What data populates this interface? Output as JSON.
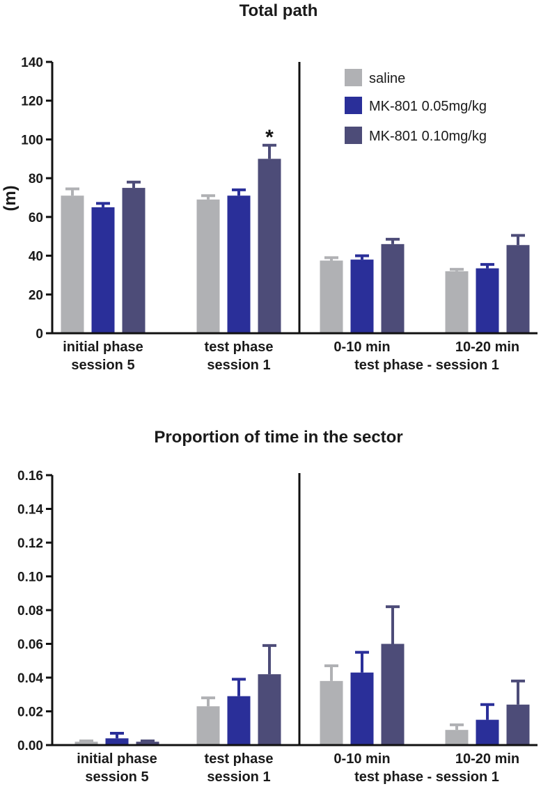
{
  "chart_data": [
    {
      "type": "bar",
      "title": "Total path",
      "ylabel": "(m)",
      "xlabel": "",
      "ylim": [
        0,
        140
      ],
      "yticks": [
        0,
        20,
        40,
        60,
        80,
        100,
        120,
        140
      ],
      "ytick_labels": [
        "0",
        "20",
        "40",
        "60",
        "80",
        "100",
        "120",
        "140"
      ],
      "grid": false,
      "legend_position": "top-right",
      "groups": [
        {
          "label_lines": [
            "initial phase",
            "session 5"
          ],
          "values": [
            71,
            65,
            75
          ],
          "errors": [
            3.5,
            2,
            3
          ]
        },
        {
          "label_lines": [
            "test phase",
            "session 1"
          ],
          "values": [
            69,
            71,
            90
          ],
          "errors": [
            2,
            3,
            7
          ],
          "annotation": "*"
        },
        {
          "label_lines": [
            "0-10 min"
          ],
          "values": [
            37.5,
            38,
            46
          ],
          "errors": [
            1.5,
            2,
            2.5
          ]
        },
        {
          "label_lines": [
            "10-20 min"
          ],
          "values": [
            32,
            33.5,
            45.5
          ],
          "errors": [
            1,
            2,
            5
          ]
        }
      ],
      "subgroup_label": "test phase - session 1"
    },
    {
      "type": "bar",
      "title": "Proportion of time in the sector",
      "ylabel": "",
      "xlabel": "",
      "ylim": [
        0,
        0.16
      ],
      "yticks": [
        0,
        0.02,
        0.04,
        0.06,
        0.08,
        0.1,
        0.12,
        0.14,
        0.16
      ],
      "ytick_labels": [
        "0.00",
        "0.02",
        "0.04",
        "0.06",
        "0.08",
        "0.10",
        "0.12",
        "0.14",
        "0.16"
      ],
      "grid": false,
      "groups": [
        {
          "label_lines": [
            "initial phase",
            "session 5"
          ],
          "values": [
            0.002,
            0.004,
            0.002
          ],
          "errors": [
            0.0005,
            0.003,
            0.0005
          ]
        },
        {
          "label_lines": [
            "test phase",
            "session 1"
          ],
          "values": [
            0.023,
            0.029,
            0.042
          ],
          "errors": [
            0.005,
            0.01,
            0.017
          ]
        },
        {
          "label_lines": [
            "0-10 min"
          ],
          "values": [
            0.038,
            0.043,
            0.06
          ],
          "errors": [
            0.009,
            0.012,
            0.022
          ]
        },
        {
          "label_lines": [
            "10-20 min"
          ],
          "values": [
            0.009,
            0.015,
            0.024
          ],
          "errors": [
            0.003,
            0.009,
            0.014
          ]
        }
      ],
      "subgroup_label": "test phase - session 1"
    }
  ],
  "series": [
    {
      "name": "saline",
      "color": "#b0b1b4"
    },
    {
      "name": "MK-801 0.05mg/kg",
      "color": "#2a2f99"
    },
    {
      "name": "MK-801 0.10mg/kg",
      "color": "#4d4c78"
    }
  ]
}
